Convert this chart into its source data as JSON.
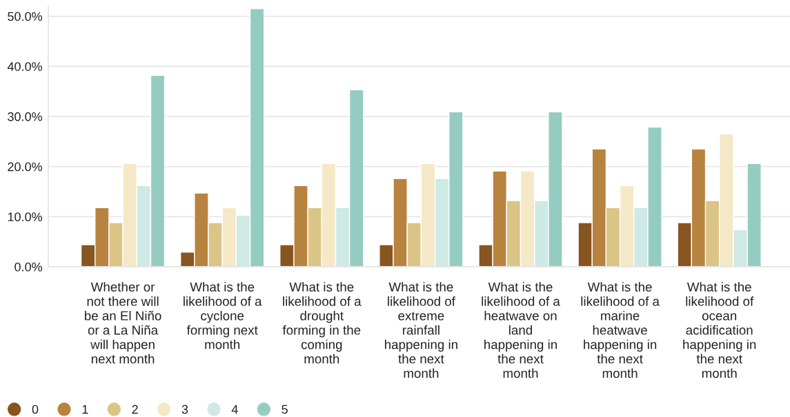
{
  "chart_data": {
    "type": "bar",
    "categories": [
      "Whether or\nnot there will\nbe an El Niño\nor a La Niña\nwill happen\nnext month",
      "What is the\nlikelihood of a\ncyclone\nforming next\nmonth",
      "What is the\nlikelihood of a\ndrought\nforming in the\ncoming\nmonth",
      "What is the\nlikelihood of\nextreme\nrainfall\nhappening in\nthe next\nmonth",
      "What is the\nlikelihood of a\nheatwave on\nland\nhappening in\nthe next\nmonth",
      "What is the\nlikelihood of a\nmarine\nheatwave\nhappening in\nthe next\nmonth",
      "What is the\nlikelihood of\nocean\nacidification\nhappening in\nthe next\nmonth"
    ],
    "series": [
      {
        "name": "0",
        "color": "#875520",
        "values": [
          4.4,
          2.9,
          4.4,
          4.4,
          4.4,
          8.8,
          8.8
        ]
      },
      {
        "name": "1",
        "color": "#b8833f",
        "values": [
          11.8,
          14.7,
          16.2,
          17.6,
          19.1,
          23.5,
          23.5
        ]
      },
      {
        "name": "2",
        "color": "#dac486",
        "values": [
          8.8,
          8.8,
          11.8,
          8.8,
          13.2,
          11.8,
          13.2
        ]
      },
      {
        "name": "3",
        "color": "#f5e8c6",
        "values": [
          20.6,
          11.8,
          20.6,
          20.6,
          19.1,
          16.2,
          26.5
        ]
      },
      {
        "name": "4",
        "color": "#cfe9e4",
        "values": [
          16.2,
          10.3,
          11.8,
          17.6,
          13.2,
          11.8,
          7.4
        ]
      },
      {
        "name": "5",
        "color": "#95ccc2",
        "values": [
          38.2,
          51.5,
          35.3,
          30.9,
          30.9,
          27.9,
          20.6
        ]
      }
    ],
    "ylim": [
      0,
      52
    ],
    "yticks": [
      {
        "value": 0,
        "label": "0.0%"
      },
      {
        "value": 10,
        "label": "10.0%"
      },
      {
        "value": 20,
        "label": "20.0%"
      },
      {
        "value": 30,
        "label": "30.0%"
      },
      {
        "value": 40,
        "label": "40.0%"
      },
      {
        "value": 50,
        "label": "50.0%"
      }
    ],
    "grid": "y",
    "legend": "bottom left"
  }
}
